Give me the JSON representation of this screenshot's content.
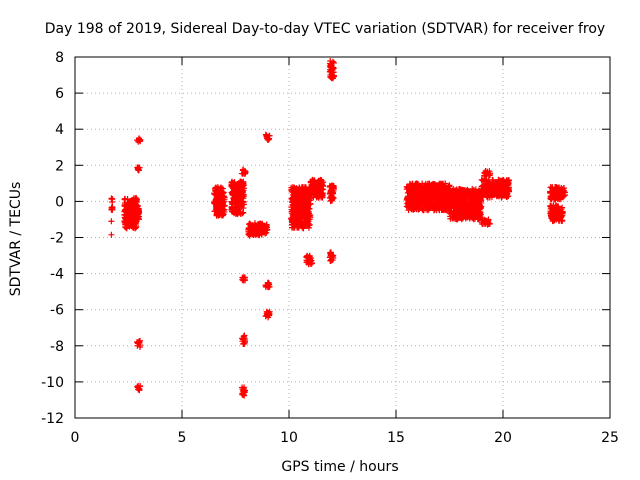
{
  "chart_data": {
    "type": "scatter",
    "title": "Day 198 of 2019, Sidereal Day-to-day VTEC variation (SDTVAR) for receiver froy",
    "xlabel": "GPS time / hours",
    "ylabel": "SDTVAR / TECUs",
    "xlim": [
      0,
      25
    ],
    "ylim": [
      -12,
      8
    ],
    "xticks": [
      0,
      5,
      10,
      15,
      20,
      25
    ],
    "yticks": [
      -12,
      -10,
      -8,
      -6,
      -4,
      -2,
      0,
      2,
      4,
      6,
      8
    ],
    "grid": true,
    "marker": "+",
    "color": "#ff0000",
    "clusters": [
      {
        "x": [
          1.7,
          1.75
        ],
        "y": [
          -0.5,
          0.3
        ]
      },
      {
        "x": [
          2.3,
          2.9
        ],
        "y": [
          -1.5,
          0.2
        ]
      },
      {
        "x": [
          2.6,
          3.0
        ],
        "y": [
          -1.2,
          -0.2
        ]
      },
      {
        "x": [
          2.9,
          3.05
        ],
        "y": [
          -8.1,
          -7.7
        ]
      },
      {
        "x": [
          2.9,
          3.05
        ],
        "y": [
          -10.5,
          -10.2
        ]
      },
      {
        "x": [
          2.9,
          3.05
        ],
        "y": [
          3.3,
          3.5
        ]
      },
      {
        "x": [
          2.9,
          3.05
        ],
        "y": [
          1.7,
          1.9
        ]
      },
      {
        "x": [
          6.5,
          7.0
        ],
        "y": [
          -0.8,
          0.8
        ]
      },
      {
        "x": [
          7.3,
          7.9
        ],
        "y": [
          -0.7,
          1.1
        ]
      },
      {
        "x": [
          7.8,
          8.0
        ],
        "y": [
          1.5,
          1.8
        ]
      },
      {
        "x": [
          7.8,
          7.95
        ],
        "y": [
          -4.4,
          -4.2
        ]
      },
      {
        "x": [
          7.8,
          7.95
        ],
        "y": [
          -7.9,
          -7.4
        ]
      },
      {
        "x": [
          7.8,
          7.95
        ],
        "y": [
          -10.8,
          -10.3
        ]
      },
      {
        "x": [
          8.1,
          9.0
        ],
        "y": [
          -1.9,
          -1.2
        ]
      },
      {
        "x": [
          8.9,
          9.1
        ],
        "y": [
          3.4,
          3.7
        ]
      },
      {
        "x": [
          8.9,
          9.1
        ],
        "y": [
          -4.8,
          -4.5
        ]
      },
      {
        "x": [
          8.9,
          9.1
        ],
        "y": [
          -6.5,
          -6.1
        ]
      },
      {
        "x": [
          10.1,
          11.0
        ],
        "y": [
          -1.5,
          0.8
        ]
      },
      {
        "x": [
          10.8,
          11.1
        ],
        "y": [
          -3.5,
          -3.0
        ]
      },
      {
        "x": [
          11.0,
          11.6
        ],
        "y": [
          0.2,
          1.2
        ]
      },
      {
        "x": [
          11.9,
          12.1
        ],
        "y": [
          -3.3,
          -2.8
        ]
      },
      {
        "x": [
          11.9,
          12.1
        ],
        "y": [
          6.8,
          7.8
        ]
      },
      {
        "x": [
          11.9,
          12.1
        ],
        "y": [
          -0.1,
          0.9
        ]
      },
      {
        "x": [
          15.5,
          17.5
        ],
        "y": [
          -0.5,
          1.0
        ]
      },
      {
        "x": [
          17.5,
          19.0
        ],
        "y": [
          -1.0,
          0.7
        ]
      },
      {
        "x": [
          19.0,
          19.4
        ],
        "y": [
          -1.3,
          -1.0
        ]
      },
      {
        "x": [
          19.0,
          20.3
        ],
        "y": [
          0.2,
          1.2
        ]
      },
      {
        "x": [
          19.1,
          19.4
        ],
        "y": [
          1.4,
          1.7
        ]
      },
      {
        "x": [
          22.2,
          22.8
        ],
        "y": [
          -1.1,
          -0.2
        ]
      },
      {
        "x": [
          22.2,
          22.9
        ],
        "y": [
          0.1,
          0.8
        ]
      }
    ],
    "singles": [
      {
        "x": 1.7,
        "y": -1.1
      },
      {
        "x": 1.7,
        "y": -1.85
      },
      {
        "x": 12.0,
        "y": 0.3
      },
      {
        "x": 18.9,
        "y": -0.6
      }
    ]
  }
}
